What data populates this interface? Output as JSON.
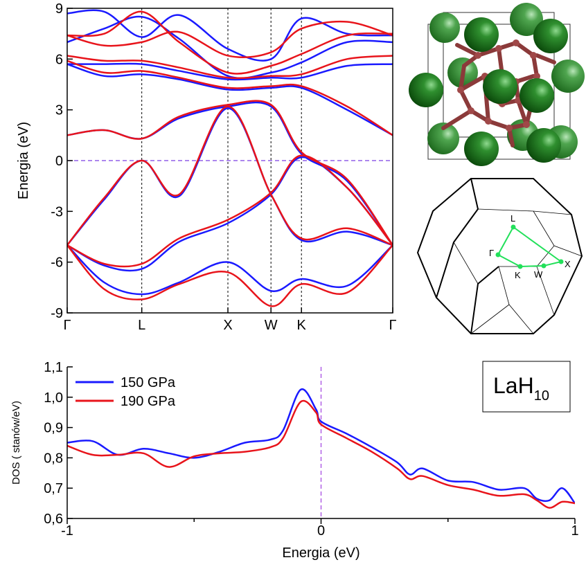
{
  "chart_data": [
    {
      "type": "line",
      "ylabel": "Energia (eV)",
      "x": [
        0,
        0.43,
        0.866,
        1.3,
        1.866,
        2.366,
        2.72,
        3.25,
        3.78
      ],
      "xlim": [
        0,
        3.78
      ],
      "xticks": [
        {
          "value": 0,
          "label": "Γ"
        },
        {
          "value": 0.866,
          "label": "L"
        },
        {
          "value": 1.866,
          "label": "X"
        },
        {
          "value": 2.366,
          "label": "W"
        },
        {
          "value": 2.72,
          "label": "K"
        },
        {
          "value": 3.78,
          "label": "Γ"
        }
      ],
      "ylim": [
        -9,
        9
      ],
      "yticks": [
        -9,
        -6,
        -3,
        0,
        3,
        6,
        9
      ],
      "xgrid": true,
      "hline": 0,
      "ref_color": "#7b3fe4",
      "frame": true,
      "series": [
        {
          "color": "#1a1aff",
          "values": [
            -5,
            -7.2,
            -7.9,
            -7.2,
            -6.0,
            -7.7,
            -7.0,
            -7.4,
            -5
          ]
        },
        {
          "color": "#1a1aff",
          "values": [
            -5,
            -6.2,
            -6.4,
            -4.8,
            -3.7,
            -2.0,
            0.2,
            -1.6,
            -5
          ]
        },
        {
          "color": "#1a1aff",
          "values": [
            -5,
            -2.3,
            0,
            -2.1,
            3.1,
            -2.0,
            -4.7,
            -4.2,
            -5
          ]
        },
        {
          "color": "#1a1aff",
          "values": [
            1.5,
            1.8,
            1.3,
            2.5,
            3.2,
            3.2,
            0.4,
            -1.2,
            -5
          ]
        },
        {
          "color": "#1a1aff",
          "values": [
            5.7,
            5.0,
            5.1,
            4.8,
            4.2,
            4.3,
            4.3,
            3.0,
            1.5
          ]
        },
        {
          "color": "#1a1aff",
          "values": [
            5.7,
            5.7,
            5.7,
            5.3,
            4.8,
            4.9,
            4.9,
            5.6,
            5.7
          ]
        },
        {
          "color": "#1a1aff",
          "values": [
            7.0,
            7.8,
            8.5,
            7.2,
            5.0,
            5.2,
            5.8,
            7.0,
            7.0
          ]
        },
        {
          "color": "#1a1aff",
          "values": [
            8.7,
            8.8,
            7.3,
            8.6,
            6.6,
            6.0,
            8.4,
            7.5,
            7.4
          ]
        },
        {
          "color": "#e8141b",
          "values": [
            -5,
            -7.6,
            -8.2,
            -7.3,
            -6.6,
            -8.6,
            -7.3,
            -7.8,
            -5
          ]
        },
        {
          "color": "#e8141b",
          "values": [
            -5,
            -6.1,
            -6.1,
            -4.6,
            -3.5,
            -1.9,
            0.3,
            -1.6,
            -5
          ]
        },
        {
          "color": "#e8141b",
          "values": [
            -5,
            -2.2,
            0,
            -2.0,
            3.2,
            -2.0,
            -4.6,
            -4.0,
            -5
          ]
        },
        {
          "color": "#e8141b",
          "values": [
            1.5,
            1.8,
            1.3,
            2.6,
            3.3,
            3.3,
            0.5,
            -1.1,
            -5
          ]
        },
        {
          "color": "#e8141b",
          "values": [
            5.9,
            5.2,
            5.3,
            4.9,
            4.3,
            4.4,
            4.4,
            3.2,
            1.5
          ]
        },
        {
          "color": "#e8141b",
          "values": [
            6.2,
            5.9,
            5.9,
            5.5,
            4.9,
            5.0,
            5.1,
            6.0,
            6.2
          ]
        },
        {
          "color": "#e8141b",
          "values": [
            7.4,
            7.5,
            8.8,
            7.0,
            5.2,
            5.6,
            6.3,
            7.4,
            7.5
          ]
        },
        {
          "color": "#e8141b",
          "values": [
            7.4,
            6.8,
            7.0,
            7.6,
            6.2,
            6.4,
            7.8,
            8.2,
            7.4
          ]
        }
      ]
    },
    {
      "type": "line",
      "xlabel": "Energia (eV)",
      "ylabel": "DOS  ( stanów/eV)",
      "x": [
        -1,
        -0.9,
        -0.8,
        -0.7,
        -0.6,
        -0.5,
        -0.4,
        -0.3,
        -0.2,
        -0.15,
        -0.08,
        -0.02,
        0,
        0.1,
        0.2,
        0.3,
        0.35,
        0.4,
        0.5,
        0.6,
        0.7,
        0.8,
        0.85,
        0.9,
        0.95,
        1
      ],
      "xlim": [
        -1,
        1
      ],
      "xticks": [
        -1,
        0,
        1
      ],
      "xminorticks": [
        -0.5,
        0.5
      ],
      "ylim": [
        0.6,
        1.1
      ],
      "yticks": [
        {
          "value": 0.6,
          "label": "0,6"
        },
        {
          "value": 0.7,
          "label": "0,7"
        },
        {
          "value": 0.8,
          "label": "0,8"
        },
        {
          "value": 0.9,
          "label": "0,9"
        },
        {
          "value": 1.0,
          "label": "1,0"
        },
        {
          "value": 1.1,
          "label": "1,1"
        }
      ],
      "vline": 0,
      "ref_color": "#a040e0",
      "legend": "upper left",
      "series": [
        {
          "name": "150 GPa",
          "color": "#1a1aff",
          "values": [
            0.85,
            0.855,
            0.81,
            0.83,
            0.815,
            0.8,
            0.82,
            0.85,
            0.86,
            0.89,
            1.025,
            0.96,
            0.92,
            0.88,
            0.835,
            0.785,
            0.745,
            0.765,
            0.725,
            0.72,
            0.695,
            0.7,
            0.665,
            0.66,
            0.7,
            0.65
          ]
        },
        {
          "name": "190 GPa",
          "color": "#e8141b",
          "values": [
            0.84,
            0.81,
            0.81,
            0.815,
            0.77,
            0.805,
            0.815,
            0.82,
            0.835,
            0.865,
            0.985,
            0.95,
            0.91,
            0.865,
            0.82,
            0.765,
            0.73,
            0.74,
            0.71,
            0.695,
            0.675,
            0.68,
            0.66,
            0.635,
            0.655,
            0.65
          ]
        }
      ]
    }
  ],
  "brillouin_zone": {
    "labels": [
      "L",
      "Γ",
      "K",
      "W",
      "X"
    ]
  },
  "compound": {
    "main": "LaH",
    "sub": "10"
  }
}
